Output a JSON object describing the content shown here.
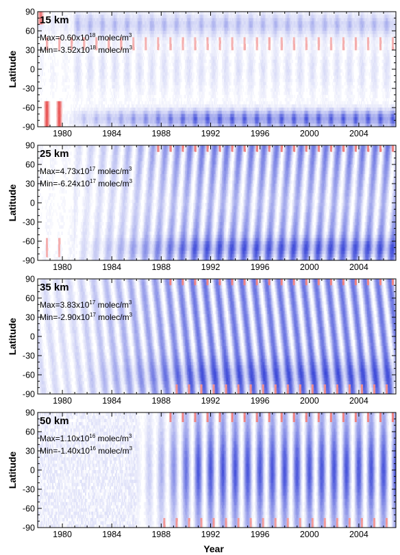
{
  "chart_data": {
    "type": "heatmap",
    "xlabel": "Year",
    "ylabel": "Latitude",
    "xlim": [
      1978,
      2007
    ],
    "ylim": [
      -90,
      90
    ],
    "x_ticks": [
      "1980",
      "1984",
      "1988",
      "1992",
      "1996",
      "2000",
      "2004"
    ],
    "y_ticks": [
      "90",
      "60",
      "30",
      "0",
      "-30",
      "-60",
      "-90"
    ],
    "colors": {
      "negative": "#1e32d2",
      "positive": "#e01e1e",
      "zero": "#ffffff"
    },
    "panels": [
      {
        "title": "15 km",
        "max_label": "Max=0.60x10",
        "max_exp": "18",
        "max_unit": " molec/m",
        "min_label": "Min=-3.52x10",
        "min_exp": "18",
        "min_unit": " molec/m",
        "unit_exp": "3",
        "max": 6e+17,
        "min": -3.52e+18
      },
      {
        "title": "25 km",
        "max_label": "Max=4.73x10",
        "max_exp": "17",
        "max_unit": " molec/m",
        "min_label": "Min=-6.24x10",
        "min_exp": "17",
        "min_unit": " molec/m",
        "unit_exp": "3",
        "max": 4.73e+17,
        "min": -6.24e+17
      },
      {
        "title": "35 km",
        "max_label": "Max=3.83x10",
        "max_exp": "17",
        "max_unit": " molec/m",
        "min_label": "Min=-2.90x10",
        "min_exp": "17",
        "min_unit": " molec/m",
        "unit_exp": "3",
        "max": 3.83e+17,
        "min": -2.9e+17
      },
      {
        "title": "50 km",
        "max_label": "Max=1.10x10",
        "max_exp": "16",
        "max_unit": " molec/m",
        "min_label": "Min=-1.40x10",
        "min_exp": "16",
        "min_unit": " molec/m",
        "unit_exp": "3",
        "max": 1.1e+16,
        "min": -1.4e+16
      }
    ]
  }
}
